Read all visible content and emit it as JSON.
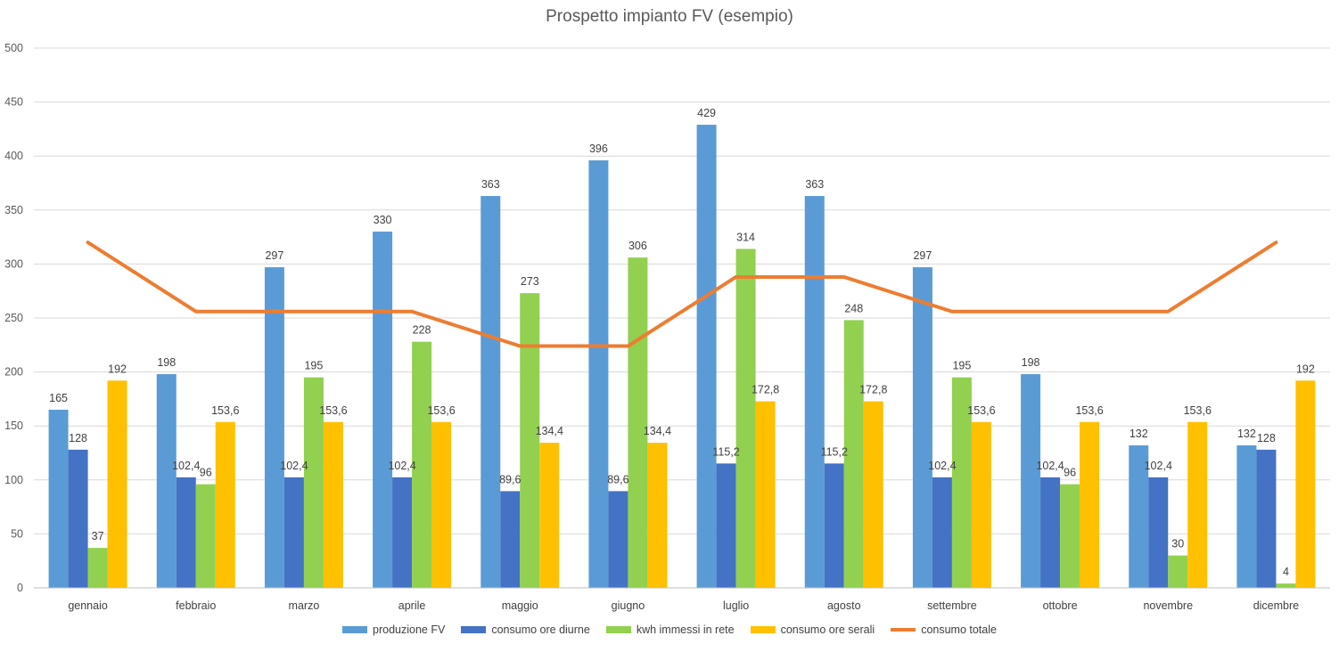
{
  "chart_data": {
    "type": "bar",
    "title": "Prospetto impianto FV (esempio)",
    "xlabel": "",
    "ylabel": "",
    "ylim": [
      0,
      500
    ],
    "yticks": [
      0,
      50,
      100,
      150,
      200,
      250,
      300,
      350,
      400,
      450,
      500
    ],
    "grid": true,
    "legend_position": "bottom",
    "categories": [
      "gennaio",
      "febbraio",
      "marzo",
      "aprile",
      "maggio",
      "giugno",
      "luglio",
      "agosto",
      "settembre",
      "ottobre",
      "novembre",
      "dicembre"
    ],
    "series": [
      {
        "name": "produzione FV",
        "kind": "bar",
        "color": "#5B9BD5",
        "values": [
          165,
          198,
          297,
          330,
          363,
          396,
          429,
          363,
          297,
          198,
          132,
          132
        ],
        "labels": [
          "165",
          "198",
          "297",
          "330",
          "363",
          "396",
          "429",
          "363",
          "297",
          "198",
          "132",
          "132"
        ]
      },
      {
        "name": "consumo ore diurne",
        "kind": "bar",
        "color": "#4472C4",
        "values": [
          128,
          102.4,
          102.4,
          102.4,
          89.6,
          89.6,
          115.2,
          115.2,
          102.4,
          102.4,
          102.4,
          128
        ],
        "labels": [
          "128",
          "102,4",
          "102,4",
          "102,4",
          "89,6",
          "89,6",
          "115,2",
          "115,2",
          "102,4",
          "102,4",
          "102,4",
          "128"
        ]
      },
      {
        "name": "kwh immessi in rete",
        "kind": "bar",
        "color": "#92D050",
        "values": [
          37,
          96,
          195,
          228,
          273,
          306,
          314,
          248,
          195,
          96,
          30,
          4
        ],
        "labels": [
          "37",
          "96",
          "195",
          "228",
          "273",
          "306",
          "314",
          "248",
          "195",
          "96",
          "30",
          "4"
        ]
      },
      {
        "name": "consumo ore serali",
        "kind": "bar",
        "color": "#FFC000",
        "values": [
          192,
          153.6,
          153.6,
          153.6,
          134.4,
          134.4,
          172.8,
          172.8,
          153.6,
          153.6,
          153.6,
          192
        ],
        "labels": [
          "192",
          "153,6",
          "153,6",
          "153,6",
          "134,4",
          "134,4",
          "172,8",
          "172,8",
          "153,6",
          "153,6",
          "153,6",
          "192"
        ]
      },
      {
        "name": "consumo totale",
        "kind": "line",
        "color": "#ED7D31",
        "values": [
          320,
          256,
          256,
          256,
          224,
          224,
          288,
          288,
          256,
          256,
          256,
          320
        ]
      }
    ]
  }
}
